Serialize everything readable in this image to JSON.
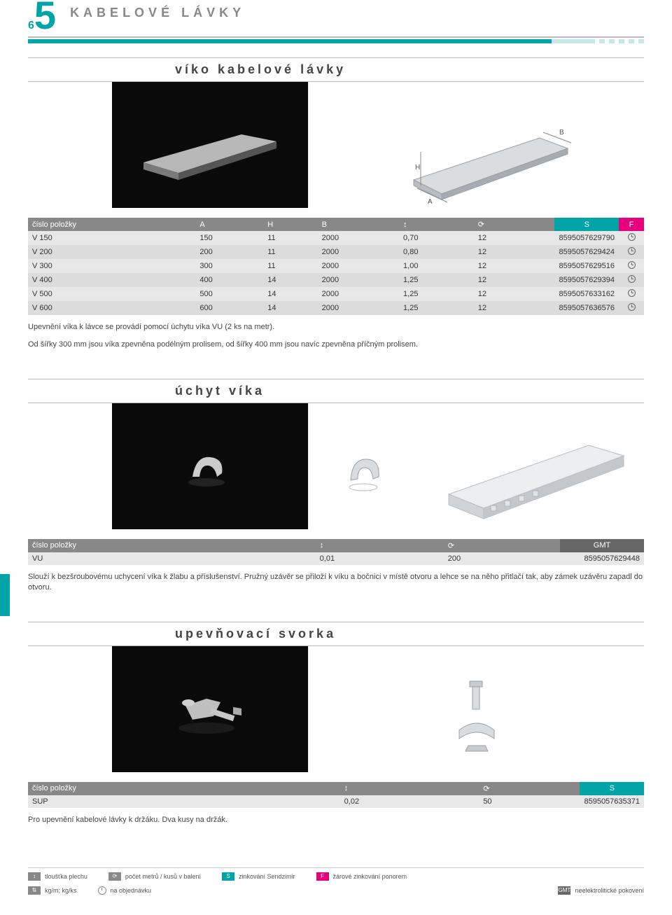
{
  "header": {
    "page_small": "6",
    "page_big": "5",
    "title": "KABELOVÉ LÁVKY"
  },
  "colors": {
    "teal": "#00a4a6",
    "magenta": "#e6007e",
    "grey_header": "#888888",
    "row_even": "#e8e8e8",
    "row_odd": "#dcdcdc"
  },
  "section1": {
    "title": "víko kabelové lávky",
    "columns": [
      "číslo položky",
      "A",
      "H",
      "B",
      "↕",
      "⟳",
      "",
      "S",
      "F"
    ],
    "rows": [
      [
        "V 150",
        "150",
        "11",
        "2000",
        "0,70",
        "12",
        "",
        "8595057629790",
        "clock"
      ],
      [
        "V 200",
        "200",
        "11",
        "2000",
        "0,80",
        "12",
        "",
        "8595057629424",
        "clock"
      ],
      [
        "V 300",
        "300",
        "11",
        "2000",
        "1,00",
        "12",
        "",
        "8595057629516",
        "clock"
      ],
      [
        "V 400",
        "400",
        "14",
        "2000",
        "1,25",
        "12",
        "",
        "8595057629394",
        "clock"
      ],
      [
        "V 500",
        "500",
        "14",
        "2000",
        "1,25",
        "12",
        "",
        "8595057633162",
        "clock"
      ],
      [
        "V 600",
        "600",
        "14",
        "2000",
        "1,25",
        "12",
        "",
        "8595057636576",
        "clock"
      ]
    ],
    "note1": "Upevnění víka k lávce se provádí pomocí úchytu víka VU (2 ks na metr).",
    "note2": "Od šířky 300 mm jsou víka zpevněna podélným prolisem, od šířky 400 mm jsou navíc zpevněna příčným prolisem."
  },
  "section2": {
    "title": "úchyt víka",
    "columns": [
      "číslo položky",
      "↕",
      "⟳",
      "GMT"
    ],
    "rows": [
      [
        "VU",
        "0,01",
        "200",
        "8595057629448"
      ]
    ],
    "note": "Slouží k bezšroubovému uchycení víka k žlabu a příslušenství. Pružný uzávěr se přiloží k víku a bočnici v místě otvoru a lehce se na něho přitlačí tak, aby zámek uzávěru zapadl do otvoru."
  },
  "section3": {
    "title": "upevňovací svorka",
    "columns": [
      "číslo položky",
      "↕",
      "⟳",
      "S"
    ],
    "rows": [
      [
        "SUP",
        "0,02",
        "50",
        "8595057635371"
      ]
    ],
    "note": "Pro upevnění kabelové lávky k držáku. Dva kusy na držák."
  },
  "legend": {
    "thickness": "tloušťka plechu",
    "weight": "kg/m; kg/ks",
    "count": "počet metrů / kusů v balení",
    "order": "na objednávku",
    "sendzimir": "zinkování Sendzimir",
    "hotdip": "žárové zinkování ponorem",
    "neelektro": "neelektrolitické pokovení"
  }
}
